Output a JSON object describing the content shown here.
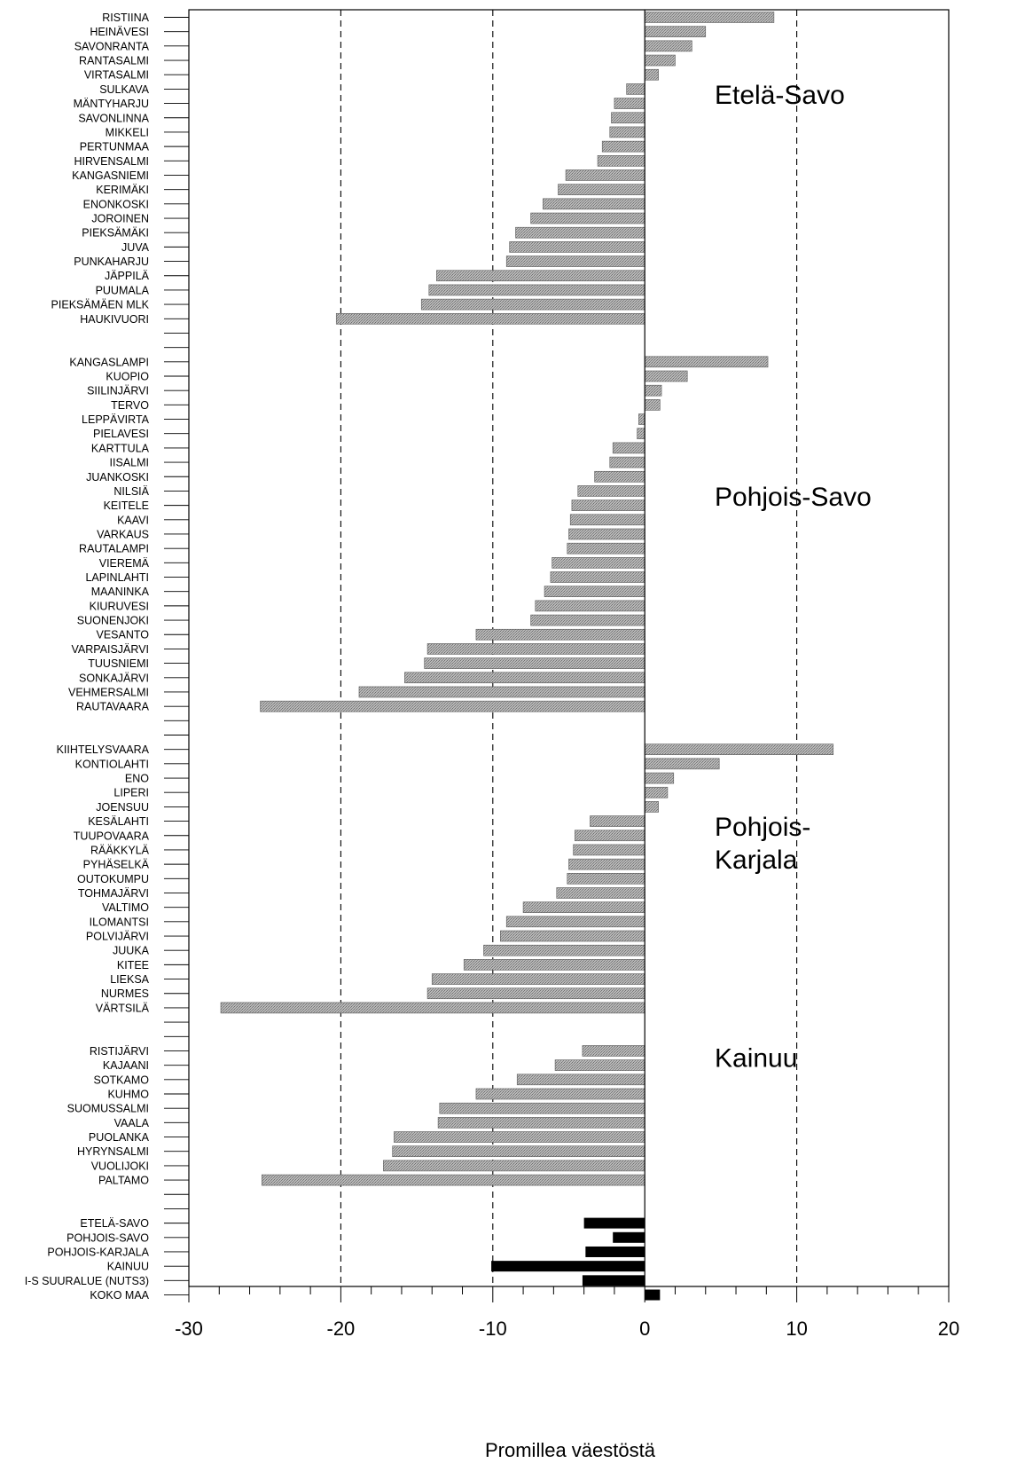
{
  "chart_data": {
    "type": "bar",
    "orientation": "horizontal",
    "xlabel": "Promillea väestöstä",
    "xlim": [
      -30,
      20
    ],
    "xticks": [
      -30,
      -20,
      -10,
      0,
      10,
      20
    ],
    "reference_lines": [
      -20,
      -10,
      10
    ],
    "colors": {
      "municipality": "#a6a6a6",
      "region_total": "#000000"
    },
    "groups": [
      {
        "label": "Etelä-Savo",
        "bars": [
          {
            "name": "RISTIINA",
            "value": 8.5
          },
          {
            "name": "HEINÄVESI",
            "value": 4.0
          },
          {
            "name": "SAVONRANTA",
            "value": 3.1
          },
          {
            "name": "RANTASALMI",
            "value": 2.0
          },
          {
            "name": "VIRTASALMI",
            "value": 0.9
          },
          {
            "name": "SULKAVA",
            "value": -1.2
          },
          {
            "name": "MÄNTYHARJU",
            "value": -2.0
          },
          {
            "name": "SAVONLINNA",
            "value": -2.2
          },
          {
            "name": "MIKKELI",
            "value": -2.3
          },
          {
            "name": "PERTUNMAA",
            "value": -2.8
          },
          {
            "name": "HIRVENSALMI",
            "value": -3.1
          },
          {
            "name": "KANGASNIEMI",
            "value": -5.2
          },
          {
            "name": "KERIMÄKI",
            "value": -5.7
          },
          {
            "name": "ENONKOSKI",
            "value": -6.7
          },
          {
            "name": "JOROINEN",
            "value": -7.5
          },
          {
            "name": "PIEKSÄMÄKI",
            "value": -8.5
          },
          {
            "name": "JUVA",
            "value": -8.9
          },
          {
            "name": "PUNKAHARJU",
            "value": -9.1
          },
          {
            "name": "JÄPPILÄ",
            "value": -13.7
          },
          {
            "name": "PUUMALA",
            "value": -14.2
          },
          {
            "name": "PIEKSÄMÄEN MLK",
            "value": -14.7
          },
          {
            "name": "HAUKIVUORI",
            "value": -20.3
          }
        ]
      },
      {
        "label": "Pohjois-Savo",
        "bars": [
          {
            "name": "KANGASLAMPI",
            "value": 8.1
          },
          {
            "name": "KUOPIO",
            "value": 2.8
          },
          {
            "name": "SIILINJÄRVI",
            "value": 1.1
          },
          {
            "name": "TERVO",
            "value": 1.0
          },
          {
            "name": "LEPPÄVIRTA",
            "value": -0.4
          },
          {
            "name": "PIELAVESI",
            "value": -0.5
          },
          {
            "name": "KARTTULA",
            "value": -2.1
          },
          {
            "name": "IISALMI",
            "value": -2.3
          },
          {
            "name": "JUANKOSKI",
            "value": -3.3
          },
          {
            "name": "NILSIÄ",
            "value": -4.4
          },
          {
            "name": "KEITELE",
            "value": -4.8
          },
          {
            "name": "KAAVI",
            "value": -4.9
          },
          {
            "name": "VARKAUS",
            "value": -5.0
          },
          {
            "name": "RAUTALAMPI",
            "value": -5.1
          },
          {
            "name": "VIEREMÄ",
            "value": -6.1
          },
          {
            "name": "LAPINLAHTI",
            "value": -6.2
          },
          {
            "name": "MAANINKA",
            "value": -6.6
          },
          {
            "name": "KIURUVESI",
            "value": -7.2
          },
          {
            "name": "SUONENJOKI",
            "value": -7.5
          },
          {
            "name": "VESANTO",
            "value": -11.1
          },
          {
            "name": "VARPAISJÄRVI",
            "value": -14.3
          },
          {
            "name": "TUUSNIEMI",
            "value": -14.5
          },
          {
            "name": "SONKAJÄRVI",
            "value": -15.8
          },
          {
            "name": "VEHMERSALMI",
            "value": -18.8
          },
          {
            "name": "RAUTAVAARA",
            "value": -25.3
          }
        ]
      },
      {
        "label": "Pohjois-Karjala",
        "label_lines": [
          "Pohjois-",
          "Karjala"
        ],
        "bars": [
          {
            "name": "KIIHTELYSVAARA",
            "value": 12.4
          },
          {
            "name": "KONTIOLAHTI",
            "value": 4.9
          },
          {
            "name": "ENO",
            "value": 1.9
          },
          {
            "name": "LIPERI",
            "value": 1.5
          },
          {
            "name": "JOENSUU",
            "value": 0.9
          },
          {
            "name": "KESÄLAHTI",
            "value": -3.6
          },
          {
            "name": "TUUPOVAARA",
            "value": -4.6
          },
          {
            "name": "RÄÄKKYLÄ",
            "value": -4.7
          },
          {
            "name": "PYHÄSELKÄ",
            "value": -5.0
          },
          {
            "name": "OUTOKUMPU",
            "value": -5.1
          },
          {
            "name": "TOHMAJÄRVI",
            "value": -5.8
          },
          {
            "name": "VALTIMO",
            "value": -8.0
          },
          {
            "name": "ILOMANTSI",
            "value": -9.1
          },
          {
            "name": "POLVIJÄRVI",
            "value": -9.5
          },
          {
            "name": "JUUKA",
            "value": -10.6
          },
          {
            "name": "KITEE",
            "value": -11.9
          },
          {
            "name": "LIEKSA",
            "value": -14.0
          },
          {
            "name": "NURMES",
            "value": -14.3
          },
          {
            "name": "VÄRTSILÄ",
            "value": -27.9
          }
        ]
      },
      {
        "label": "Kainuu",
        "bars": [
          {
            "name": "RISTIJÄRVI",
            "value": -4.1
          },
          {
            "name": "KAJAANI",
            "value": -5.9
          },
          {
            "name": "SOTKAMO",
            "value": -8.4
          },
          {
            "name": "KUHMO",
            "value": -11.1
          },
          {
            "name": "SUOMUSSALMI",
            "value": -13.5
          },
          {
            "name": "VAALA",
            "value": -13.6
          },
          {
            "name": "PUOLANKA",
            "value": -16.5
          },
          {
            "name": "HYRYNSALMI",
            "value": -16.6
          },
          {
            "name": "VUOLIJOKI",
            "value": -17.2
          },
          {
            "name": "PALTAMO",
            "value": -25.2
          }
        ]
      },
      {
        "label": "",
        "totals": true,
        "bars": [
          {
            "name": "ETELÄ-SAVO",
            "value": -4.0
          },
          {
            "name": "POHJOIS-SAVO",
            "value": -2.1
          },
          {
            "name": "POHJOIS-KARJALA",
            "value": -3.9
          },
          {
            "name": "KAINUU",
            "value": -10.1
          },
          {
            "name": "I-S SUURALUE (NUTS3)",
            "value": -4.1
          },
          {
            "name": "KOKO MAA",
            "value": 1.0
          }
        ]
      }
    ]
  }
}
